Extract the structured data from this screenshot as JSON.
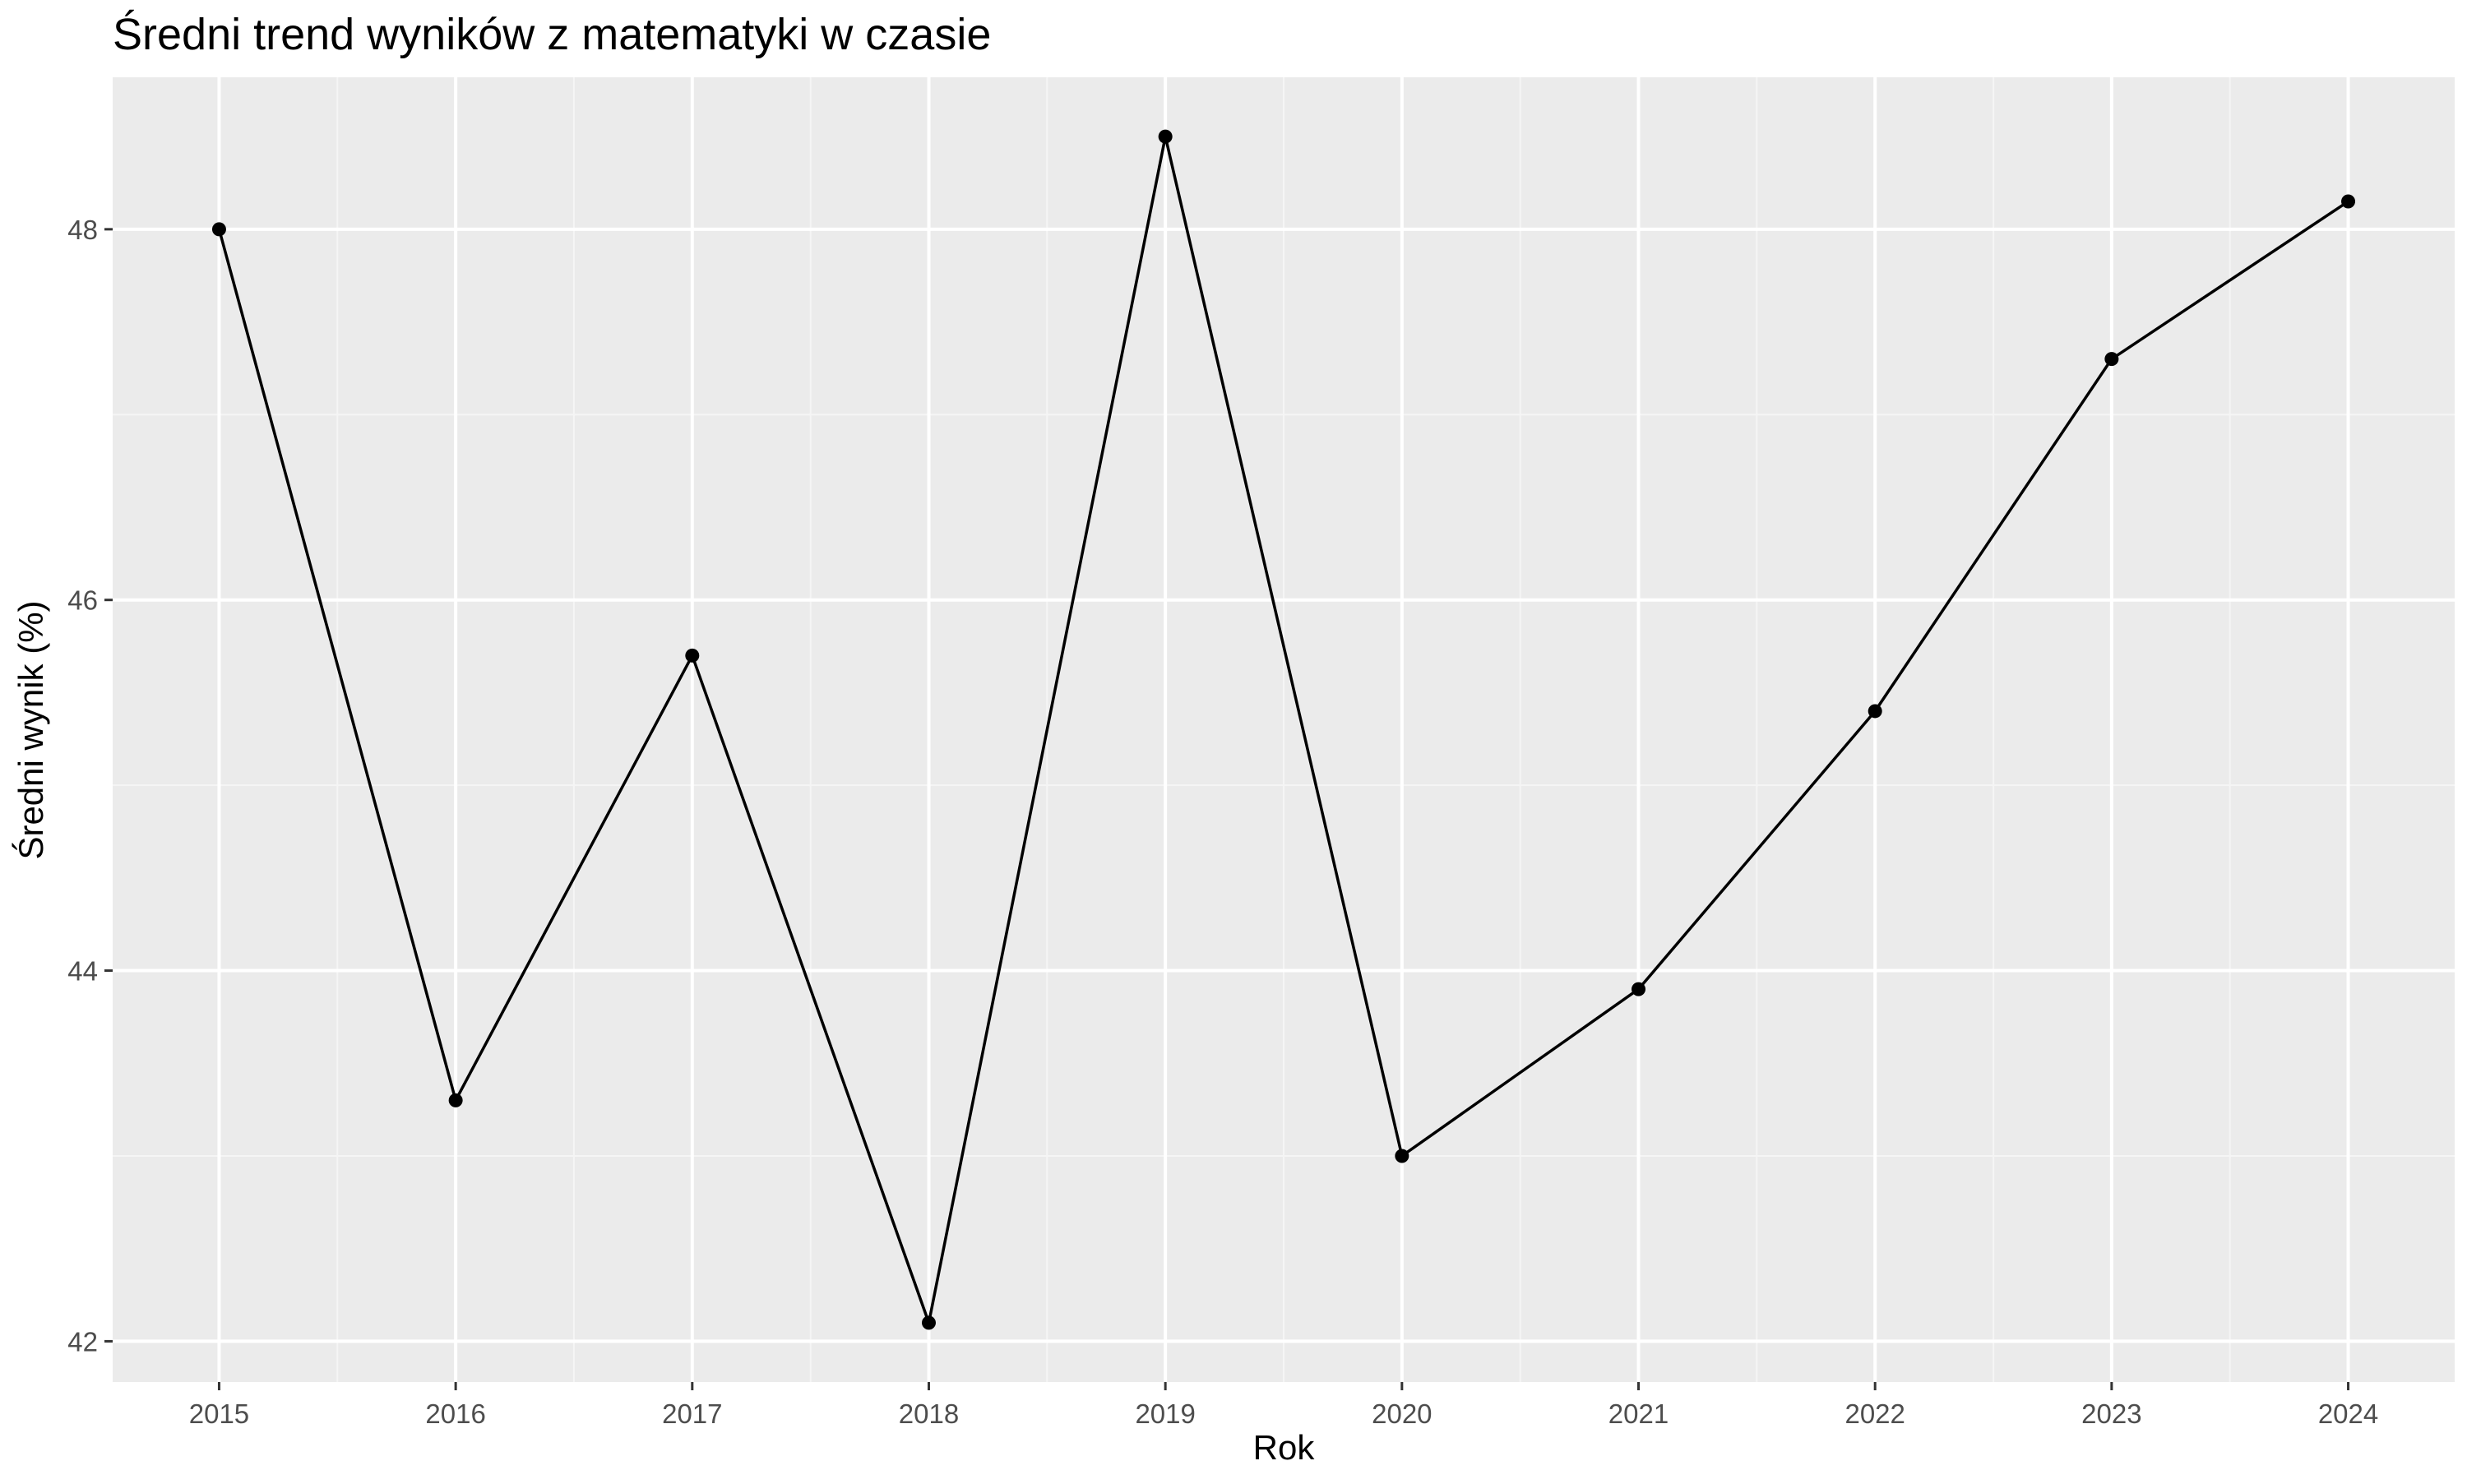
{
  "chart_data": {
    "type": "line",
    "title": "Średni trend wyników z matematyki w czasie",
    "xlabel": "Rok",
    "ylabel": "Średni wynik (%)",
    "x": [
      2015,
      2016,
      2017,
      2018,
      2019,
      2020,
      2021,
      2022,
      2023,
      2024
    ],
    "x_tick_labels": [
      "2015",
      "2016",
      "2017",
      "2018",
      "2019",
      "2020",
      "2021",
      "2022",
      "2023",
      "2024"
    ],
    "series": [
      {
        "values": [
          48.0,
          43.3,
          45.7,
          42.1,
          48.5,
          43.0,
          43.9,
          45.4,
          47.3,
          48.15
        ]
      }
    ],
    "y_ticks": [
      42,
      44,
      46,
      48
    ],
    "y_tick_labels": [
      "42",
      "44",
      "46",
      "48"
    ],
    "xlim": [
      2014.55,
      2024.45
    ],
    "ylim": [
      41.78,
      48.82
    ],
    "grid": true,
    "legend": "none",
    "colors": {
      "panel_background": "#ebebeb",
      "grid_major": "#ffffff",
      "grid_minor": "#f5f5f5",
      "line": "#000000",
      "point": "#000000",
      "tick_label": "#4d4d4d"
    }
  }
}
